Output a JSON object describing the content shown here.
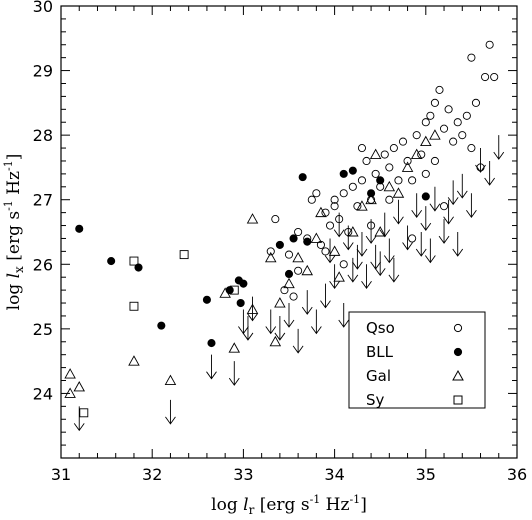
{
  "chart_data": {
    "type": "scatter",
    "xlabel": "log l_r [erg s^-1 Hz^-1]",
    "ylabel": "log l_x [erg s^-1 Hz^-1]",
    "xlabel_parts": {
      "pre": "log ",
      "var": "l",
      "sub": "r",
      "post": " [erg s",
      "exp1": "-1",
      "mid": " Hz",
      "exp2": "-1",
      "end": "]"
    },
    "ylabel_parts": {
      "pre": "log ",
      "var": "l",
      "sub": "x",
      "post": " [erg s",
      "exp1": "-1",
      "mid": " Hz",
      "exp2": "-1",
      "end": "]"
    },
    "xlim": [
      31,
      36
    ],
    "ylim": [
      23,
      30
    ],
    "xticks": [
      "31",
      "32",
      "33",
      "34",
      "35",
      "36"
    ],
    "yticks": [
      "24",
      "25",
      "26",
      "27",
      "28",
      "29",
      "30"
    ],
    "legend_position": "lower-right",
    "series": [
      {
        "name": "Qso",
        "marker": "open-circle",
        "points": [
          [
            33.3,
            26.2
          ],
          [
            33.35,
            26.7
          ],
          [
            33.45,
            25.6
          ],
          [
            33.5,
            26.15
          ],
          [
            33.55,
            25.5
          ],
          [
            33.6,
            26.5
          ],
          [
            33.7,
            26.4
          ],
          [
            33.75,
            27.0
          ],
          [
            33.8,
            27.1
          ],
          [
            33.85,
            26.3
          ],
          [
            33.9,
            26.8
          ],
          [
            33.95,
            26.6
          ],
          [
            34.0,
            27.0
          ],
          [
            34.05,
            26.7
          ],
          [
            34.1,
            27.1
          ],
          [
            34.15,
            26.5
          ],
          [
            34.2,
            27.2
          ],
          [
            34.25,
            26.9
          ],
          [
            34.3,
            27.3
          ],
          [
            34.35,
            27.6
          ],
          [
            34.4,
            27.0
          ],
          [
            34.45,
            27.4
          ],
          [
            34.5,
            27.2
          ],
          [
            34.55,
            27.7
          ],
          [
            34.6,
            27.5
          ],
          [
            34.65,
            27.8
          ],
          [
            34.7,
            27.3
          ],
          [
            34.75,
            27.9
          ],
          [
            34.8,
            27.6
          ],
          [
            34.85,
            26.4
          ],
          [
            34.9,
            28.0
          ],
          [
            34.95,
            27.7
          ],
          [
            35.0,
            28.2
          ],
          [
            35.05,
            28.3
          ],
          [
            35.1,
            28.5
          ],
          [
            35.15,
            28.7
          ],
          [
            35.2,
            28.1
          ],
          [
            35.25,
            28.4
          ],
          [
            35.3,
            27.9
          ],
          [
            35.35,
            28.2
          ],
          [
            35.4,
            28.0
          ],
          [
            35.45,
            28.3
          ],
          [
            35.5,
            27.8
          ],
          [
            35.55,
            28.5
          ],
          [
            35.6,
            27.5
          ],
          [
            35.65,
            28.9
          ],
          [
            35.7,
            29.4
          ],
          [
            35.75,
            28.9
          ],
          [
            35.5,
            29.2
          ],
          [
            35.1,
            27.6
          ],
          [
            34.6,
            27.0
          ],
          [
            34.0,
            26.9
          ],
          [
            33.9,
            26.2
          ],
          [
            34.3,
            27.8
          ],
          [
            35.0,
            27.4
          ],
          [
            34.85,
            27.3
          ],
          [
            35.2,
            26.9
          ],
          [
            34.4,
            26.6
          ],
          [
            34.1,
            26.0
          ],
          [
            33.6,
            25.9
          ]
        ]
      },
      {
        "name": "BLL",
        "marker": "filled-circle",
        "points": [
          [
            31.2,
            26.55
          ],
          [
            31.55,
            26.05
          ],
          [
            31.85,
            25.95
          ],
          [
            32.1,
            25.05
          ],
          [
            32.6,
            25.45
          ],
          [
            32.65,
            24.78
          ],
          [
            32.85,
            25.6
          ],
          [
            32.95,
            25.75
          ],
          [
            32.97,
            25.4
          ],
          [
            33.0,
            25.7
          ],
          [
            33.4,
            26.3
          ],
          [
            33.5,
            25.85
          ],
          [
            33.55,
            26.4
          ],
          [
            33.65,
            27.35
          ],
          [
            33.7,
            26.35
          ],
          [
            34.1,
            27.4
          ],
          [
            34.2,
            27.45
          ],
          [
            34.4,
            27.1
          ],
          [
            34.5,
            27.3
          ],
          [
            35.0,
            27.05
          ]
        ]
      },
      {
        "name": "Gal",
        "marker": "open-triangle",
        "points": [
          [
            31.1,
            24.3
          ],
          [
            31.1,
            24.0
          ],
          [
            31.2,
            24.1
          ],
          [
            31.8,
            24.5
          ],
          [
            32.2,
            24.2
          ],
          [
            32.9,
            24.7
          ],
          [
            32.8,
            25.55
          ],
          [
            33.1,
            25.3
          ],
          [
            33.1,
            26.7
          ],
          [
            33.3,
            26.1
          ],
          [
            33.35,
            24.8
          ],
          [
            33.4,
            25.4
          ],
          [
            33.5,
            25.7
          ],
          [
            33.6,
            26.1
          ],
          [
            33.7,
            25.9
          ],
          [
            33.8,
            26.4
          ],
          [
            33.85,
            26.8
          ],
          [
            34.0,
            26.2
          ],
          [
            34.05,
            25.8
          ],
          [
            34.2,
            26.5
          ],
          [
            34.3,
            26.9
          ],
          [
            34.4,
            27.0
          ],
          [
            34.5,
            26.5
          ],
          [
            34.6,
            27.2
          ],
          [
            34.7,
            27.1
          ],
          [
            34.8,
            27.5
          ],
          [
            34.9,
            27.7
          ],
          [
            35.0,
            27.9
          ],
          [
            35.1,
            28.0
          ],
          [
            34.45,
            27.7
          ]
        ]
      },
      {
        "name": "Sy",
        "marker": "open-square",
        "points": [
          [
            31.25,
            23.7
          ],
          [
            31.8,
            26.05
          ],
          [
            31.8,
            25.35
          ],
          [
            32.35,
            26.15
          ],
          [
            32.9,
            25.6
          ]
        ]
      },
      {
        "name": "",
        "marker": "upper-limit-arrow",
        "points": [
          [
            31.2,
            23.8
          ],
          [
            32.2,
            23.9
          ],
          [
            32.65,
            24.6
          ],
          [
            32.9,
            24.5
          ],
          [
            33.0,
            25.3
          ],
          [
            33.05,
            25.2
          ],
          [
            33.1,
            25.5
          ],
          [
            33.3,
            25.3
          ],
          [
            33.4,
            25.2
          ],
          [
            33.5,
            25.4
          ],
          [
            33.6,
            25.0
          ],
          [
            33.7,
            25.6
          ],
          [
            33.8,
            25.3
          ],
          [
            33.9,
            25.7
          ],
          [
            34.0,
            26.0
          ],
          [
            34.1,
            25.4
          ],
          [
            34.2,
            26.1
          ],
          [
            34.25,
            26.3
          ],
          [
            34.3,
            26.5
          ],
          [
            34.35,
            26.0
          ],
          [
            34.4,
            26.7
          ],
          [
            34.5,
            26.2
          ],
          [
            34.55,
            26.8
          ],
          [
            34.6,
            26.4
          ],
          [
            34.7,
            27.0
          ],
          [
            34.8,
            26.6
          ],
          [
            34.9,
            27.1
          ],
          [
            35.0,
            26.9
          ],
          [
            35.05,
            26.4
          ],
          [
            35.1,
            27.2
          ],
          [
            35.2,
            26.7
          ],
          [
            35.3,
            27.3
          ],
          [
            35.35,
            26.5
          ],
          [
            35.4,
            27.4
          ],
          [
            35.5,
            27.1
          ],
          [
            35.6,
            27.8
          ],
          [
            35.7,
            27.6
          ],
          [
            35.8,
            28.0
          ],
          [
            34.15,
            26.6
          ],
          [
            34.45,
            26.3
          ],
          [
            34.65,
            26.1
          ],
          [
            34.95,
            26.5
          ],
          [
            35.25,
            27.0
          ],
          [
            33.95,
            26.4
          ],
          [
            34.05,
            26.8
          ]
        ]
      }
    ]
  }
}
